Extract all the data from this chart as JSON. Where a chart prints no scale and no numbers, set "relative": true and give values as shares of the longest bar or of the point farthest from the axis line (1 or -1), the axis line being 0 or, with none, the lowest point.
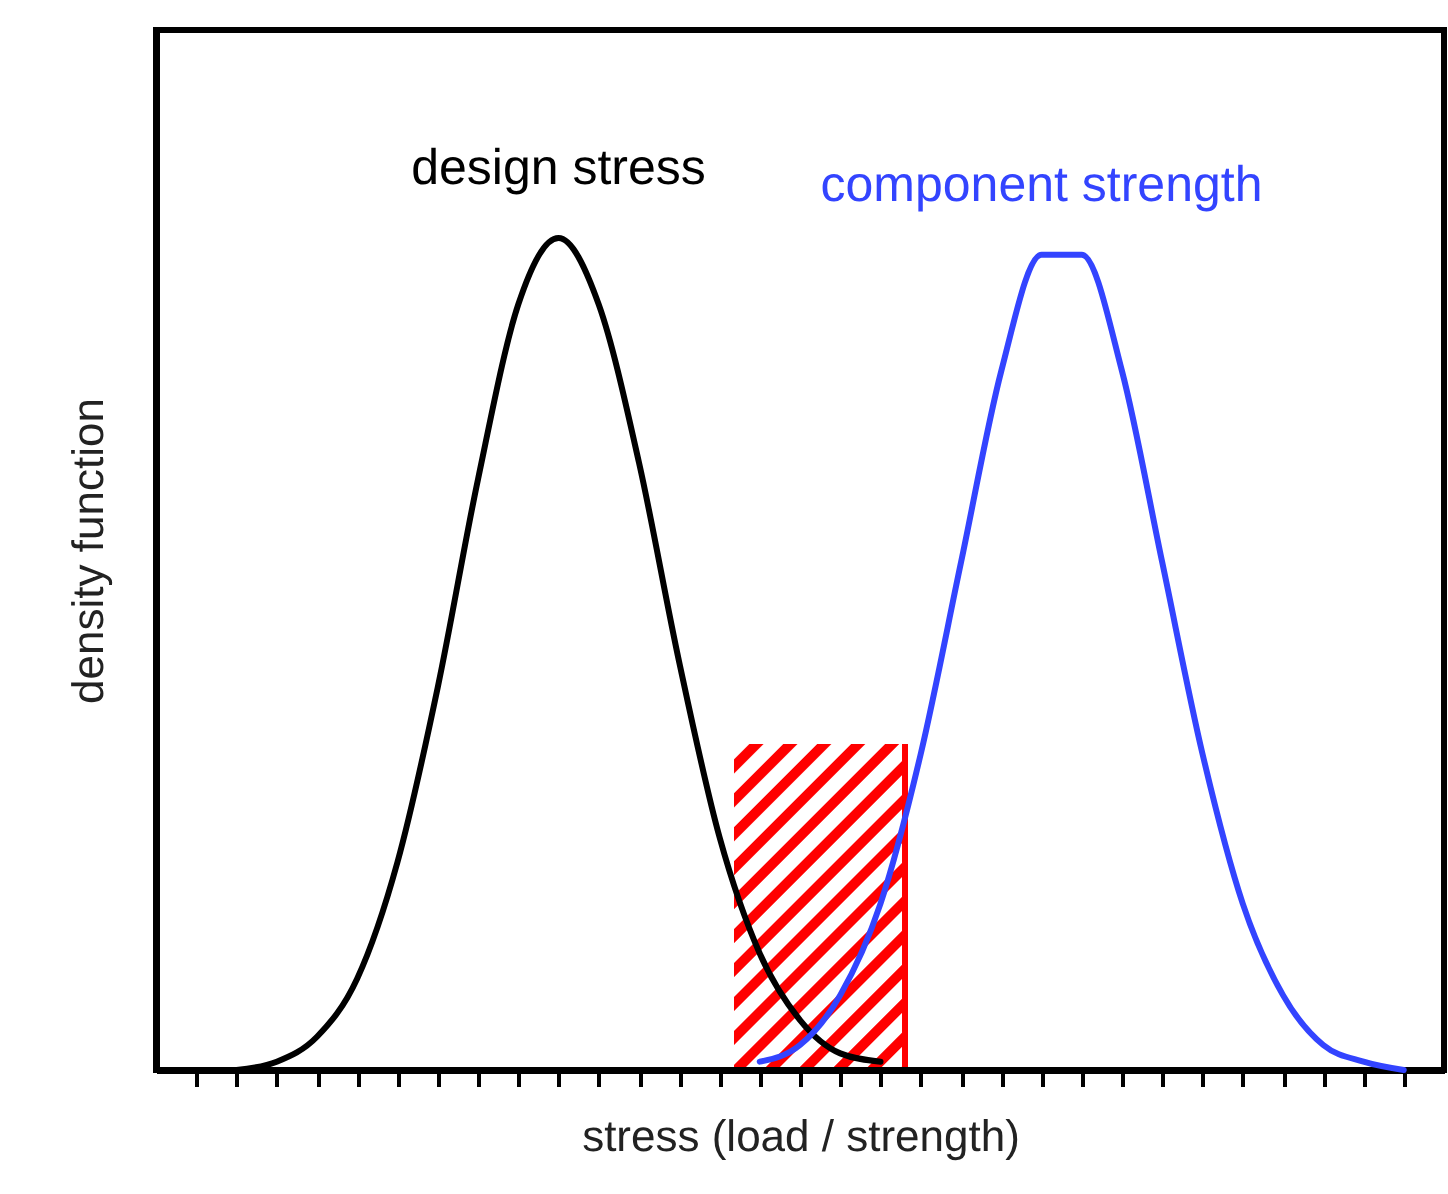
{
  "chart_data": {
    "type": "line",
    "xlabel": "stress (load / strength)",
    "ylabel": "density function",
    "relative": true,
    "categories": [
      null,
      null,
      null,
      null,
      null,
      null,
      null,
      null,
      null,
      null,
      null,
      null,
      null,
      null,
      null,
      null,
      null,
      null,
      null,
      null,
      null,
      null,
      null,
      null,
      null,
      null,
      null,
      null,
      null,
      null,
      null
    ],
    "series": [
      {
        "name": "design stress",
        "color": "#000000",
        "values": [
          null,
          0.0,
          0.01,
          0.04,
          0.11,
          0.25,
          0.46,
          0.71,
          0.92,
          1,
          0.92,
          0.73,
          0.49,
          0.28,
          0.14,
          0.06,
          0.02,
          0.01,
          null,
          null,
          null,
          null,
          null,
          null,
          null,
          null,
          null,
          null,
          null,
          null,
          null
        ]
      },
      {
        "name": "component strength",
        "color": "#3344ff",
        "values": [
          null,
          null,
          null,
          null,
          null,
          null,
          null,
          null,
          null,
          null,
          null,
          null,
          null,
          null,
          0.01,
          0.03,
          0.09,
          0.2,
          0.38,
          0.61,
          0.84,
          0.98,
          0.98,
          0.84,
          0.61,
          0.38,
          0.2,
          0.09,
          0.03,
          0.01,
          0.0
        ]
      }
    ]
  }
}
